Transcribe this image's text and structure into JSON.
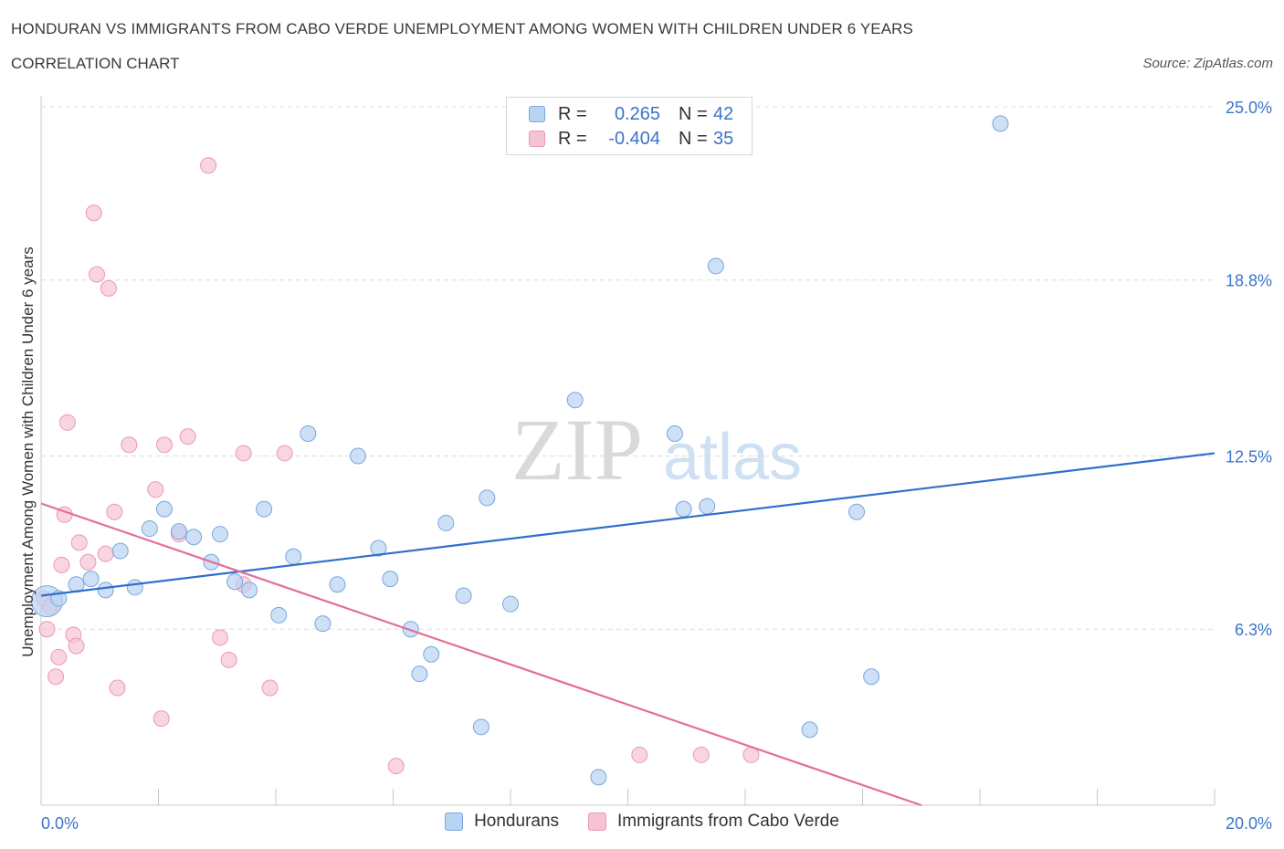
{
  "title": "HONDURAN VS IMMIGRANTS FROM CABO VERDE UNEMPLOYMENT AMONG WOMEN WITH CHILDREN UNDER 6 YEARS",
  "subtitle": "CORRELATION CHART",
  "source": "Source: ZipAtlas.com",
  "watermark": {
    "zip": "ZIP",
    "atlas": "atlas"
  },
  "colors": {
    "blue_fill": "#b9d3f2",
    "blue_stroke": "#7aa6dc",
    "blue_line": "#2f6fcc",
    "pink_fill": "#f6c3d3",
    "pink_stroke": "#ec98b4",
    "pink_line": "#e36d9b",
    "axis_text": "#3a74c9",
    "grid": "#dddddd"
  },
  "legend": {
    "rows": [
      {
        "r_label": "R =",
        "r_value": "0.265",
        "n_label": "N =",
        "n_value": "42"
      },
      {
        "r_label": "R =",
        "r_value": "-0.404",
        "n_label": "N =",
        "n_value": "35"
      }
    ]
  },
  "chart_data": {
    "type": "scatter",
    "title": "HONDURAN VS IMMIGRANTS FROM CABO VERDE UNEMPLOYMENT AMONG WOMEN WITH CHILDREN UNDER 6 YEARS",
    "xlabel": "",
    "ylabel": "Unemployment Among Women with Children Under 6 years",
    "xlim": [
      0,
      20
    ],
    "ylim": [
      0,
      25
    ],
    "x_tick_labels": [
      "0.0%",
      "20.0%"
    ],
    "y_ticks": [
      6.3,
      12.5,
      18.8,
      25.0
    ],
    "y_tick_labels": [
      "6.3%",
      "12.5%",
      "18.8%",
      "25.0%"
    ],
    "grid": true,
    "series": [
      {
        "name": "Hondurans",
        "r": 0.265,
        "n": 42,
        "trend": {
          "x": [
            0,
            20
          ],
          "y": [
            7.5,
            12.6
          ]
        },
        "points": [
          {
            "x": 0.1,
            "y": 7.3,
            "big": true
          },
          {
            "x": 0.6,
            "y": 7.9
          },
          {
            "x": 0.85,
            "y": 8.1
          },
          {
            "x": 1.1,
            "y": 7.7
          },
          {
            "x": 1.35,
            "y": 9.1
          },
          {
            "x": 1.6,
            "y": 7.8
          },
          {
            "x": 1.85,
            "y": 9.9
          },
          {
            "x": 2.1,
            "y": 10.6
          },
          {
            "x": 2.35,
            "y": 9.8
          },
          {
            "x": 2.6,
            "y": 9.6
          },
          {
            "x": 2.9,
            "y": 8.7
          },
          {
            "x": 3.05,
            "y": 9.7
          },
          {
            "x": 3.3,
            "y": 8.0
          },
          {
            "x": 3.55,
            "y": 7.7
          },
          {
            "x": 3.8,
            "y": 10.6
          },
          {
            "x": 4.05,
            "y": 6.8
          },
          {
            "x": 4.3,
            "y": 8.9
          },
          {
            "x": 4.55,
            "y": 13.3
          },
          {
            "x": 4.8,
            "y": 6.5
          },
          {
            "x": 5.05,
            "y": 7.9
          },
          {
            "x": 5.4,
            "y": 12.5
          },
          {
            "x": 5.75,
            "y": 9.2
          },
          {
            "x": 5.95,
            "y": 8.1
          },
          {
            "x": 6.3,
            "y": 6.3
          },
          {
            "x": 6.45,
            "y": 4.7
          },
          {
            "x": 6.65,
            "y": 5.4
          },
          {
            "x": 6.9,
            "y": 10.1
          },
          {
            "x": 7.2,
            "y": 7.5
          },
          {
            "x": 7.5,
            "y": 2.8
          },
          {
            "x": 7.6,
            "y": 11.0
          },
          {
            "x": 8.0,
            "y": 7.2
          },
          {
            "x": 9.1,
            "y": 14.5
          },
          {
            "x": 9.5,
            "y": 1.0
          },
          {
            "x": 10.8,
            "y": 13.3
          },
          {
            "x": 10.95,
            "y": 10.6
          },
          {
            "x": 11.35,
            "y": 10.7
          },
          {
            "x": 11.5,
            "y": 19.3
          },
          {
            "x": 13.1,
            "y": 2.7
          },
          {
            "x": 13.9,
            "y": 10.5
          },
          {
            "x": 14.15,
            "y": 4.6
          },
          {
            "x": 16.35,
            "y": 24.4
          },
          {
            "x": 0.3,
            "y": 7.4
          }
        ]
      },
      {
        "name": "Immigrants from Cabo Verde",
        "r": -0.404,
        "n": 35,
        "trend": {
          "x": [
            0,
            15
          ],
          "y": [
            10.8,
            0.0
          ]
        },
        "points": [
          {
            "x": 0.05,
            "y": 7.4
          },
          {
            "x": 0.1,
            "y": 6.3
          },
          {
            "x": 0.15,
            "y": 7.1
          },
          {
            "x": 0.25,
            "y": 4.6
          },
          {
            "x": 0.3,
            "y": 5.3
          },
          {
            "x": 0.35,
            "y": 8.6
          },
          {
            "x": 0.4,
            "y": 10.4
          },
          {
            "x": 0.45,
            "y": 13.7
          },
          {
            "x": 0.55,
            "y": 6.1
          },
          {
            "x": 0.6,
            "y": 5.7
          },
          {
            "x": 0.65,
            "y": 9.4
          },
          {
            "x": 0.8,
            "y": 8.7
          },
          {
            "x": 0.9,
            "y": 21.2
          },
          {
            "x": 0.95,
            "y": 19.0
          },
          {
            "x": 1.1,
            "y": 9.0
          },
          {
            "x": 1.15,
            "y": 18.5
          },
          {
            "x": 1.25,
            "y": 10.5
          },
          {
            "x": 1.3,
            "y": 4.2
          },
          {
            "x": 1.5,
            "y": 12.9
          },
          {
            "x": 1.95,
            "y": 11.3
          },
          {
            "x": 2.05,
            "y": 3.1
          },
          {
            "x": 2.1,
            "y": 12.9
          },
          {
            "x": 2.35,
            "y": 9.7
          },
          {
            "x": 2.5,
            "y": 13.2
          },
          {
            "x": 2.85,
            "y": 22.9
          },
          {
            "x": 3.05,
            "y": 6.0
          },
          {
            "x": 3.2,
            "y": 5.2
          },
          {
            "x": 3.45,
            "y": 12.6
          },
          {
            "x": 3.45,
            "y": 7.9
          },
          {
            "x": 3.9,
            "y": 4.2
          },
          {
            "x": 4.15,
            "y": 12.6
          },
          {
            "x": 6.05,
            "y": 1.4
          },
          {
            "x": 10.2,
            "y": 1.8
          },
          {
            "x": 11.25,
            "y": 1.8
          },
          {
            "x": 12.1,
            "y": 1.8
          }
        ]
      }
    ]
  }
}
